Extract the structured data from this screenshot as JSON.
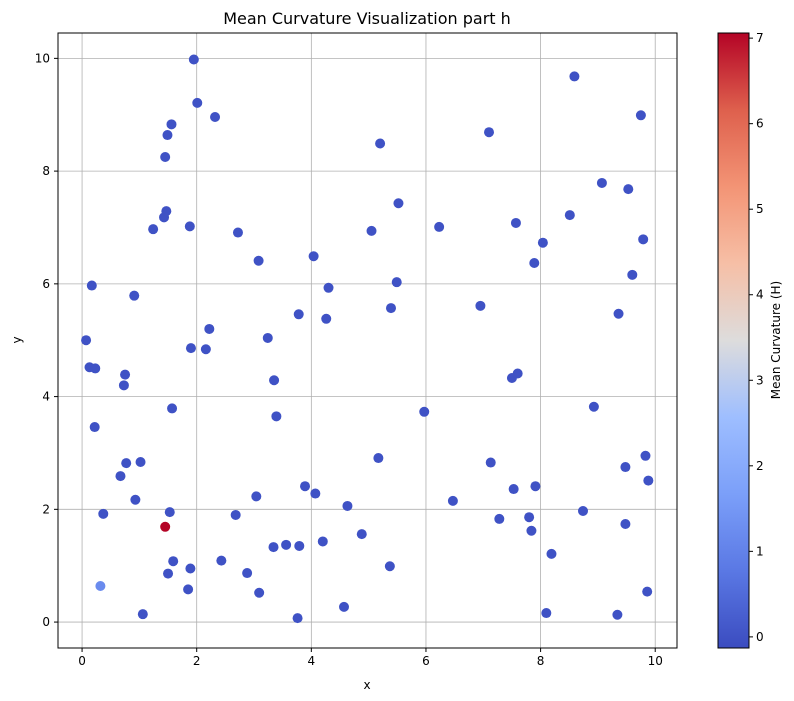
{
  "chart_data": {
    "type": "scatter",
    "title": "Mean Curvature Visualization part h",
    "xlabel": "x",
    "ylabel": "y",
    "xlim": [
      -0.42,
      10.38
    ],
    "ylim": [
      -0.46,
      10.45
    ],
    "xticks": [
      0,
      2,
      4,
      6,
      8,
      10
    ],
    "yticks": [
      0,
      2,
      4,
      6,
      8,
      10
    ],
    "grid": true,
    "colorbar": {
      "label": "Mean Curvature (H)",
      "colormap": "coolwarm",
      "range": [
        -0.13,
        7.06
      ],
      "ticks": [
        0,
        1,
        2,
        3,
        4,
        5,
        6,
        7
      ]
    },
    "points": [
      {
        "x": 0.07,
        "y": 5.0,
        "h": 0
      },
      {
        "x": 0.13,
        "y": 4.52,
        "h": 0
      },
      {
        "x": 0.17,
        "y": 5.97,
        "h": 0
      },
      {
        "x": 0.23,
        "y": 4.5,
        "h": 0
      },
      {
        "x": 0.22,
        "y": 3.46,
        "h": 0
      },
      {
        "x": 0.32,
        "y": 0.64,
        "h": 1.2
      },
      {
        "x": 0.37,
        "y": 1.92,
        "h": 0
      },
      {
        "x": 0.67,
        "y": 2.59,
        "h": 0
      },
      {
        "x": 0.73,
        "y": 4.2,
        "h": 0
      },
      {
        "x": 0.75,
        "y": 4.39,
        "h": 0
      },
      {
        "x": 0.77,
        "y": 2.82,
        "h": 0
      },
      {
        "x": 0.91,
        "y": 5.79,
        "h": 0
      },
      {
        "x": 0.93,
        "y": 2.17,
        "h": 0
      },
      {
        "x": 1.02,
        "y": 2.84,
        "h": 0
      },
      {
        "x": 1.06,
        "y": 0.14,
        "h": 0
      },
      {
        "x": 1.24,
        "y": 6.97,
        "h": 0
      },
      {
        "x": 1.43,
        "y": 7.18,
        "h": 0
      },
      {
        "x": 1.45,
        "y": 8.25,
        "h": 0
      },
      {
        "x": 1.47,
        "y": 7.29,
        "h": 0
      },
      {
        "x": 1.49,
        "y": 8.64,
        "h": 0
      },
      {
        "x": 1.56,
        "y": 8.83,
        "h": 0
      },
      {
        "x": 1.45,
        "y": 1.69,
        "h": 7.06
      },
      {
        "x": 1.5,
        "y": 0.86,
        "h": 0
      },
      {
        "x": 1.53,
        "y": 1.95,
        "h": 0
      },
      {
        "x": 1.57,
        "y": 3.79,
        "h": 0
      },
      {
        "x": 1.59,
        "y": 1.08,
        "h": 0
      },
      {
        "x": 1.85,
        "y": 0.58,
        "h": 0
      },
      {
        "x": 1.88,
        "y": 7.02,
        "h": 0
      },
      {
        "x": 1.9,
        "y": 4.86,
        "h": 0
      },
      {
        "x": 1.89,
        "y": 0.95,
        "h": 0
      },
      {
        "x": 1.95,
        "y": 9.98,
        "h": 0
      },
      {
        "x": 2.01,
        "y": 9.21,
        "h": 0
      },
      {
        "x": 2.16,
        "y": 4.84,
        "h": 0
      },
      {
        "x": 2.22,
        "y": 5.2,
        "h": 0
      },
      {
        "x": 2.32,
        "y": 8.96,
        "h": 0
      },
      {
        "x": 2.43,
        "y": 1.09,
        "h": 0
      },
      {
        "x": 2.68,
        "y": 1.9,
        "h": 0
      },
      {
        "x": 2.72,
        "y": 6.91,
        "h": 0
      },
      {
        "x": 2.88,
        "y": 0.87,
        "h": 0
      },
      {
        "x": 3.04,
        "y": 2.23,
        "h": 0
      },
      {
        "x": 3.08,
        "y": 6.41,
        "h": 0
      },
      {
        "x": 3.09,
        "y": 0.52,
        "h": 0
      },
      {
        "x": 3.24,
        "y": 5.04,
        "h": 0
      },
      {
        "x": 3.34,
        "y": 1.33,
        "h": 0
      },
      {
        "x": 3.35,
        "y": 4.29,
        "h": 0
      },
      {
        "x": 3.39,
        "y": 3.65,
        "h": 0
      },
      {
        "x": 3.56,
        "y": 1.37,
        "h": 0
      },
      {
        "x": 3.76,
        "y": 0.07,
        "h": 0
      },
      {
        "x": 3.78,
        "y": 5.46,
        "h": 0
      },
      {
        "x": 3.79,
        "y": 1.35,
        "h": 0
      },
      {
        "x": 3.89,
        "y": 2.41,
        "h": 0
      },
      {
        "x": 4.04,
        "y": 6.49,
        "h": 0
      },
      {
        "x": 4.07,
        "y": 2.28,
        "h": 0
      },
      {
        "x": 4.2,
        "y": 1.43,
        "h": 0
      },
      {
        "x": 4.26,
        "y": 5.38,
        "h": 0
      },
      {
        "x": 4.3,
        "y": 5.93,
        "h": 0
      },
      {
        "x": 4.57,
        "y": 0.27,
        "h": 0
      },
      {
        "x": 4.63,
        "y": 2.06,
        "h": 0
      },
      {
        "x": 4.88,
        "y": 1.56,
        "h": 0
      },
      {
        "x": 5.05,
        "y": 6.94,
        "h": 0
      },
      {
        "x": 5.17,
        "y": 2.91,
        "h": 0
      },
      {
        "x": 5.2,
        "y": 8.49,
        "h": 0
      },
      {
        "x": 5.37,
        "y": 0.99,
        "h": 0
      },
      {
        "x": 5.39,
        "y": 5.57,
        "h": 0
      },
      {
        "x": 5.49,
        "y": 6.03,
        "h": 0
      },
      {
        "x": 5.52,
        "y": 7.43,
        "h": 0
      },
      {
        "x": 5.97,
        "y": 3.73,
        "h": 0
      },
      {
        "x": 6.23,
        "y": 7.01,
        "h": 0
      },
      {
        "x": 6.47,
        "y": 2.15,
        "h": 0
      },
      {
        "x": 6.95,
        "y": 5.61,
        "h": 0
      },
      {
        "x": 7.1,
        "y": 8.69,
        "h": 0
      },
      {
        "x": 7.13,
        "y": 2.83,
        "h": 0
      },
      {
        "x": 7.28,
        "y": 1.83,
        "h": 0
      },
      {
        "x": 7.5,
        "y": 4.33,
        "h": 0
      },
      {
        "x": 7.53,
        "y": 2.36,
        "h": 0
      },
      {
        "x": 7.57,
        "y": 7.08,
        "h": 0
      },
      {
        "x": 7.6,
        "y": 4.41,
        "h": 0
      },
      {
        "x": 7.8,
        "y": 1.86,
        "h": 0
      },
      {
        "x": 7.84,
        "y": 1.62,
        "h": 0
      },
      {
        "x": 7.89,
        "y": 6.37,
        "h": 0
      },
      {
        "x": 7.91,
        "y": 2.41,
        "h": 0
      },
      {
        "x": 8.04,
        "y": 6.73,
        "h": 0
      },
      {
        "x": 8.1,
        "y": 0.16,
        "h": 0
      },
      {
        "x": 8.19,
        "y": 1.21,
        "h": 0
      },
      {
        "x": 8.51,
        "y": 7.22,
        "h": 0
      },
      {
        "x": 8.59,
        "y": 9.68,
        "h": 0
      },
      {
        "x": 8.74,
        "y": 1.97,
        "h": 0
      },
      {
        "x": 8.93,
        "y": 3.82,
        "h": 0
      },
      {
        "x": 9.07,
        "y": 7.79,
        "h": 0
      },
      {
        "x": 9.34,
        "y": 0.13,
        "h": 0
      },
      {
        "x": 9.36,
        "y": 5.47,
        "h": 0
      },
      {
        "x": 9.48,
        "y": 2.75,
        "h": 0
      },
      {
        "x": 9.48,
        "y": 1.74,
        "h": 0
      },
      {
        "x": 9.53,
        "y": 7.68,
        "h": 0
      },
      {
        "x": 9.6,
        "y": 6.16,
        "h": 0
      },
      {
        "x": 9.75,
        "y": 8.99,
        "h": 0
      },
      {
        "x": 9.79,
        "y": 6.79,
        "h": 0
      },
      {
        "x": 9.83,
        "y": 2.95,
        "h": 0
      },
      {
        "x": 9.86,
        "y": 0.54,
        "h": 0
      },
      {
        "x": 9.88,
        "y": 2.51,
        "h": 0
      }
    ]
  }
}
